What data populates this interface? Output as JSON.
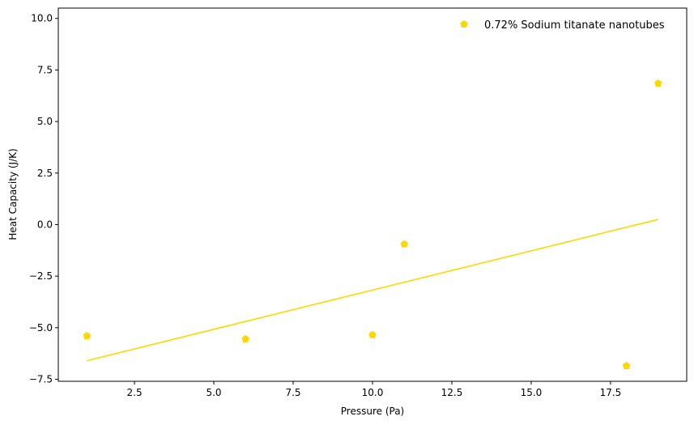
{
  "chart_data": {
    "type": "scatter",
    "title": "",
    "xlabel": "Pressure (Pa)",
    "ylabel": "Heat Capacity (J/K)",
    "xlim": [
      0.1,
      19.9
    ],
    "ylim": [
      -7.6,
      10.5
    ],
    "xticks": [
      2.5,
      5.0,
      7.5,
      10.0,
      12.5,
      15.0,
      17.5
    ],
    "xtick_labels": [
      "2.5",
      "5.0",
      "7.5",
      "10.0",
      "12.5",
      "15.0",
      "17.5"
    ],
    "yticks": [
      -7.5,
      -5.0,
      -2.5,
      0.0,
      2.5,
      5.0,
      7.5,
      10.0
    ],
    "ytick_labels": [
      "−7.5",
      "−5.0",
      "−2.5",
      "0.0",
      "2.5",
      "5.0",
      "7.5",
      "10.0"
    ],
    "grid": false,
    "legend_position": "top-right",
    "series": [
      {
        "name": "0.72% Sodium titanate nanotubes",
        "color": "#FFD700",
        "marker": "pentagon",
        "x": [
          1,
          6,
          10,
          11,
          18,
          19
        ],
        "y": [
          -5.4,
          -5.55,
          -5.35,
          -0.95,
          -6.85,
          6.85
        ]
      }
    ],
    "fit_line": {
      "color": "#FFD700",
      "x": [
        1,
        19
      ],
      "y": [
        -6.6,
        0.25
      ]
    }
  }
}
